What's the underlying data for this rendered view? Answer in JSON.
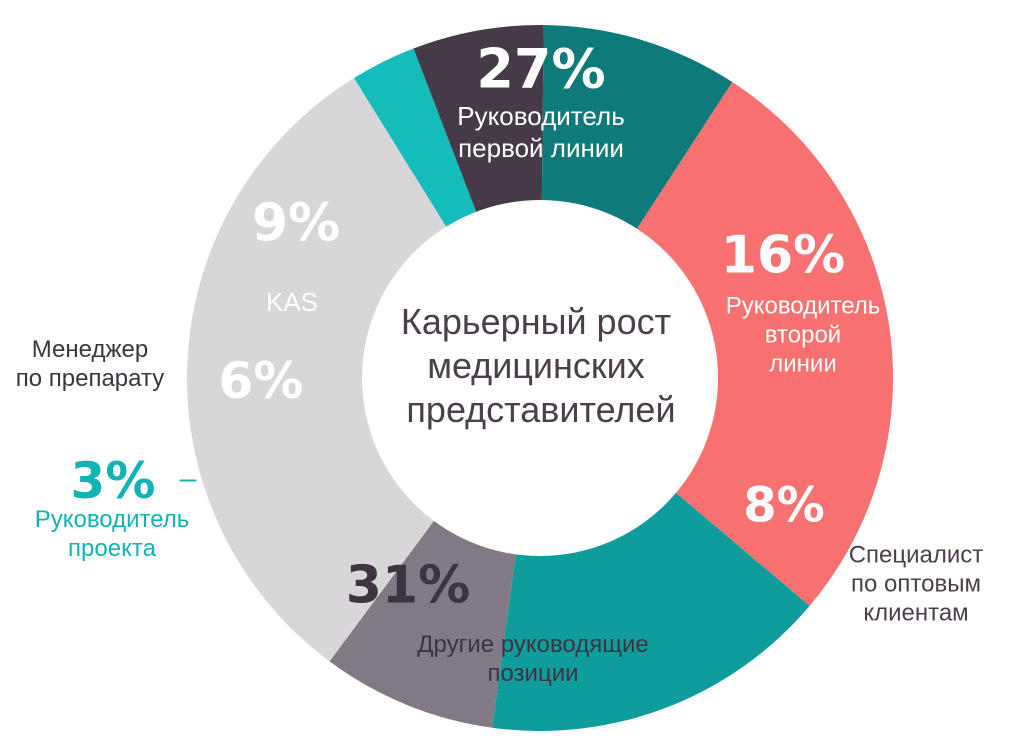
{
  "chart_data": {
    "type": "pie",
    "title": "Карьерный рост медицинских представителей",
    "title_lines": [
      "Карьерный рост",
      "медицинских",
      "представителей"
    ],
    "start_angle_deg": -57,
    "slices": [
      {
        "label": "Руководитель первой линии",
        "label_lines": [
          "Руководитель",
          "первой линии"
        ],
        "value": 27,
        "value_label": "27%",
        "color": "#f87171",
        "text_color": "#ffffff"
      },
      {
        "label": "Руководитель второй линии",
        "label_lines": [
          "Руководитель",
          "второй",
          "линии"
        ],
        "value": 16,
        "value_label": "16%",
        "color": "#0f9c9c",
        "text_color": "#ffffff"
      },
      {
        "label": "Специалист по оптовым клиентам",
        "label_lines": [
          "Специалист",
          "по оптовым",
          "клиентам"
        ],
        "value": 8,
        "value_label": "8%",
        "color": "#817a84",
        "text_color": "#ffffff",
        "label_color": "#4a3f4b"
      },
      {
        "label": "Другие руководящие позиции",
        "label_lines": [
          "Другие руководящие",
          "позиции"
        ],
        "value": 31,
        "value_label": "31%",
        "color": "#d8d6d9",
        "text_color": "#3d3440"
      },
      {
        "label": "Руководитель проекта",
        "label_lines": [
          "Руководитель",
          "проекта"
        ],
        "value": 3,
        "value_label": "3%",
        "color": "#14bcbc",
        "text_color": "#14b3b3",
        "dash": "–"
      },
      {
        "label": "Менеджер по препарату",
        "label_lines": [
          "Менеджер",
          "по препарату"
        ],
        "value": 6,
        "value_label": "6%",
        "color": "#463a48",
        "text_color": "#ffffff",
        "label_color": "#3d3440"
      },
      {
        "label": "KAS",
        "label_lines": [
          "KAS"
        ],
        "value": 9,
        "value_label": "9%",
        "color": "#0e7a7a",
        "text_color": "#ffffff"
      }
    ]
  }
}
